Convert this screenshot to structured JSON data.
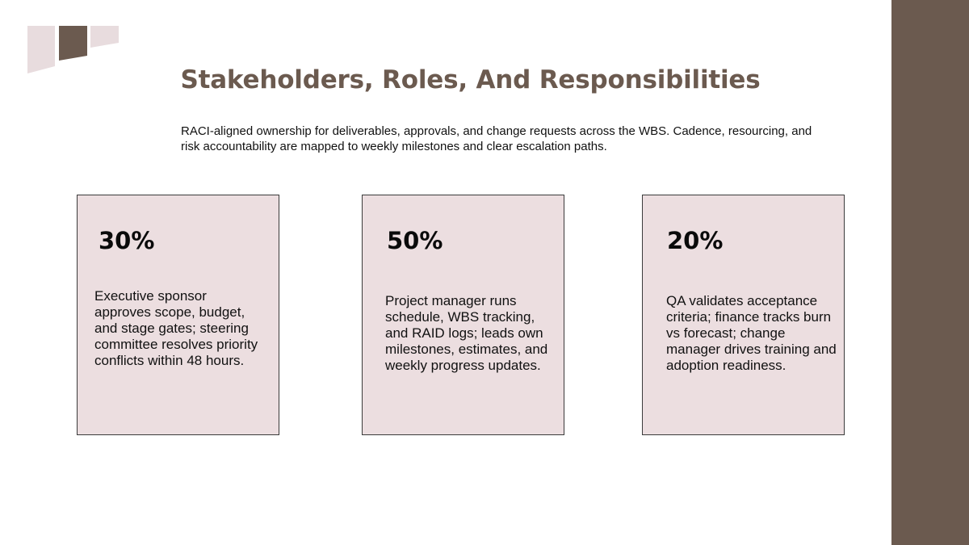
{
  "slide": {
    "title": "Stakeholders, Roles, And Responsibilities",
    "subtitle": "RACI-aligned ownership for deliverables, approvals, and change requests across the WBS. Cadence, resourcing, and risk accountability are mapped to weekly milestones and clear escalation paths."
  },
  "cards": [
    {
      "percent": "30%",
      "text": "Executive sponsor approves scope, budget, and stage gates; steering committee resolves priority conflicts within 48 hours."
    },
    {
      "percent": "50%",
      "text": "Project manager runs schedule, WBS tracking, and RAID logs; leads own milestones, estimates, and weekly progress updates."
    },
    {
      "percent": "20%",
      "text": "QA validates acceptance criteria; finance tracks burn vs forecast; change manager drives training and adoption readiness."
    }
  ],
  "colors": {
    "accent": "#6b5a4f",
    "band": "#6b5a4f",
    "card_fill": "#ecdee0",
    "logo_light": "#e8dcde",
    "logo_dark": "#6b5a4f"
  }
}
